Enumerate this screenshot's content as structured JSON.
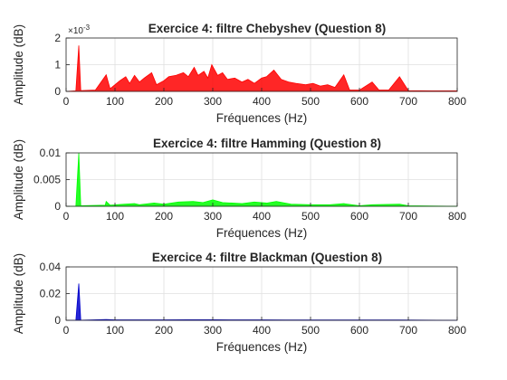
{
  "chart_data": [
    {
      "type": "line",
      "title": "Exercice 4: filtre Chebyshev (Question 8)",
      "xlabel": "Fréquences (Hz)",
      "ylabel": "Amplitude (dB)",
      "xlim": [
        0,
        800
      ],
      "ylim": [
        0,
        2
      ],
      "xticks": [
        "0",
        "100",
        "200",
        "300",
        "400",
        "500",
        "600",
        "700",
        "800"
      ],
      "yticks": [
        "0",
        "1",
        "2"
      ],
      "y_exponent_label": "×10",
      "y_exponent_power": "-3",
      "grid": true,
      "color": "#ff0000",
      "series": [
        {
          "values": [
            [
              0,
              0
            ],
            [
              20,
              0.02
            ],
            [
              26,
              1.72
            ],
            [
              30,
              0.03
            ],
            [
              60,
              0.05
            ],
            [
              82,
              0.62
            ],
            [
              90,
              0.1
            ],
            [
              100,
              0.25
            ],
            [
              110,
              0.4
            ],
            [
              122,
              0.55
            ],
            [
              130,
              0.3
            ],
            [
              140,
              0.6
            ],
            [
              150,
              0.35
            ],
            [
              160,
              0.5
            ],
            [
              175,
              0.7
            ],
            [
              185,
              0.25
            ],
            [
              200,
              0.4
            ],
            [
              210,
              0.55
            ],
            [
              225,
              0.6
            ],
            [
              240,
              0.7
            ],
            [
              250,
              0.55
            ],
            [
              262,
              0.9
            ],
            [
              270,
              0.6
            ],
            [
              282,
              0.75
            ],
            [
              290,
              0.5
            ],
            [
              298,
              1.0
            ],
            [
              310,
              0.6
            ],
            [
              320,
              0.7
            ],
            [
              330,
              0.45
            ],
            [
              345,
              0.5
            ],
            [
              360,
              0.35
            ],
            [
              372,
              0.45
            ],
            [
              385,
              0.3
            ],
            [
              400,
              0.5
            ],
            [
              410,
              0.55
            ],
            [
              425,
              0.8
            ],
            [
              440,
              0.45
            ],
            [
              455,
              0.35
            ],
            [
              470,
              0.3
            ],
            [
              490,
              0.25
            ],
            [
              505,
              0.3
            ],
            [
              520,
              0.2
            ],
            [
              535,
              0.25
            ],
            [
              550,
              0.15
            ],
            [
              568,
              0.62
            ],
            [
              580,
              0.05
            ],
            [
              600,
              0.05
            ],
            [
              626,
              0.35
            ],
            [
              640,
              0.05
            ],
            [
              660,
              0.05
            ],
            [
              682,
              0.55
            ],
            [
              700,
              0.03
            ],
            [
              750,
              0.02
            ],
            [
              800,
              0.02
            ]
          ]
        }
      ]
    },
    {
      "type": "line",
      "title": "Exercice 4: filtre Hamming (Question 8)",
      "xlabel": "Fréquences (Hz)",
      "ylabel": "Amplitude (dB)",
      "xlim": [
        0,
        800
      ],
      "ylim": [
        0,
        0.01
      ],
      "xticks": [
        "0",
        "100",
        "200",
        "300",
        "400",
        "500",
        "600",
        "700",
        "800"
      ],
      "yticks": [
        "0",
        "0.005",
        "0.01"
      ],
      "grid": true,
      "color": "#00ff00",
      "series": [
        {
          "values": [
            [
              0,
              0
            ],
            [
              20,
              0
            ],
            [
              26,
              0.0102
            ],
            [
              30,
              0.0001
            ],
            [
              80,
              0.0002
            ],
            [
              82,
              0.0009
            ],
            [
              90,
              0.0002
            ],
            [
              120,
              0.0004
            ],
            [
              140,
              0.0005
            ],
            [
              150,
              0.0003
            ],
            [
              180,
              0.0006
            ],
            [
              200,
              0.0004
            ],
            [
              230,
              0.0008
            ],
            [
              260,
              0.0009
            ],
            [
              280,
              0.0007
            ],
            [
              300,
              0.0012
            ],
            [
              320,
              0.0007
            ],
            [
              340,
              0.0006
            ],
            [
              360,
              0.0005
            ],
            [
              385,
              0.0008
            ],
            [
              410,
              0.0006
            ],
            [
              430,
              0.0009
            ],
            [
              460,
              0.0004
            ],
            [
              500,
              0.0003
            ],
            [
              540,
              0.0003
            ],
            [
              568,
              0.0005
            ],
            [
              600,
              0.0001
            ],
            [
              626,
              0.0003
            ],
            [
              682,
              0.0004
            ],
            [
              700,
              0.0001
            ],
            [
              800,
              0
            ]
          ]
        }
      ]
    },
    {
      "type": "line",
      "title": "Exercice 4: filtre Blackman (Question 8)",
      "xlabel": "Fréquences (Hz)",
      "ylabel": "Amplitude (dB)",
      "xlim": [
        0,
        800
      ],
      "ylim": [
        0,
        0.04
      ],
      "xticks": [
        "0",
        "100",
        "200",
        "300",
        "400",
        "500",
        "600",
        "700",
        "800"
      ],
      "yticks": [
        "0",
        "0.02",
        "0.04"
      ],
      "grid": true,
      "color": "#0000cc",
      "series": [
        {
          "values": [
            [
              0,
              0
            ],
            [
              20,
              0
            ],
            [
              26,
              0.0275
            ],
            [
              30,
              0.0001
            ],
            [
              82,
              0.0006
            ],
            [
              100,
              0.0003
            ],
            [
              150,
              0.0003
            ],
            [
              200,
              0.0003
            ],
            [
              250,
              0.0004
            ],
            [
              300,
              0.0004
            ],
            [
              350,
              0.0003
            ],
            [
              400,
              0.0003
            ],
            [
              450,
              0.0002
            ],
            [
              500,
              0.0002
            ],
            [
              568,
              0.0002
            ],
            [
              626,
              0.0002
            ],
            [
              682,
              0.0002
            ],
            [
              800,
              0
            ]
          ]
        }
      ]
    }
  ]
}
